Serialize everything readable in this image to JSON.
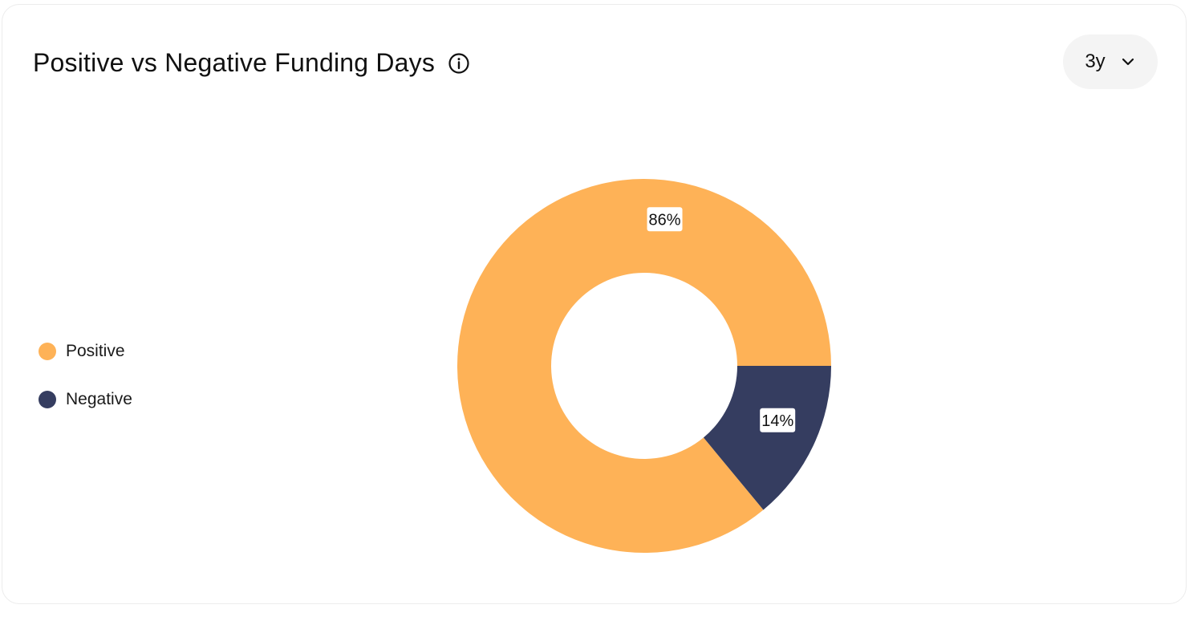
{
  "header": {
    "title": "Positive vs Negative Funding Days",
    "info_icon": "info-circle-icon"
  },
  "range_selector": {
    "value": "3y",
    "icon": "chevron-down-icon"
  },
  "legend": {
    "items": [
      {
        "label": "Positive",
        "color": "#FEB257"
      },
      {
        "label": "Negative",
        "color": "#353D60"
      }
    ]
  },
  "chart_data": {
    "type": "pie",
    "variant": "donut",
    "title": "Positive vs Negative Funding Days",
    "categories": [
      "Positive",
      "Negative"
    ],
    "values": [
      86,
      14
    ],
    "labels": [
      "86%",
      "14%"
    ],
    "colors": [
      "#FEB257",
      "#353D60"
    ],
    "legend_position": "left"
  }
}
